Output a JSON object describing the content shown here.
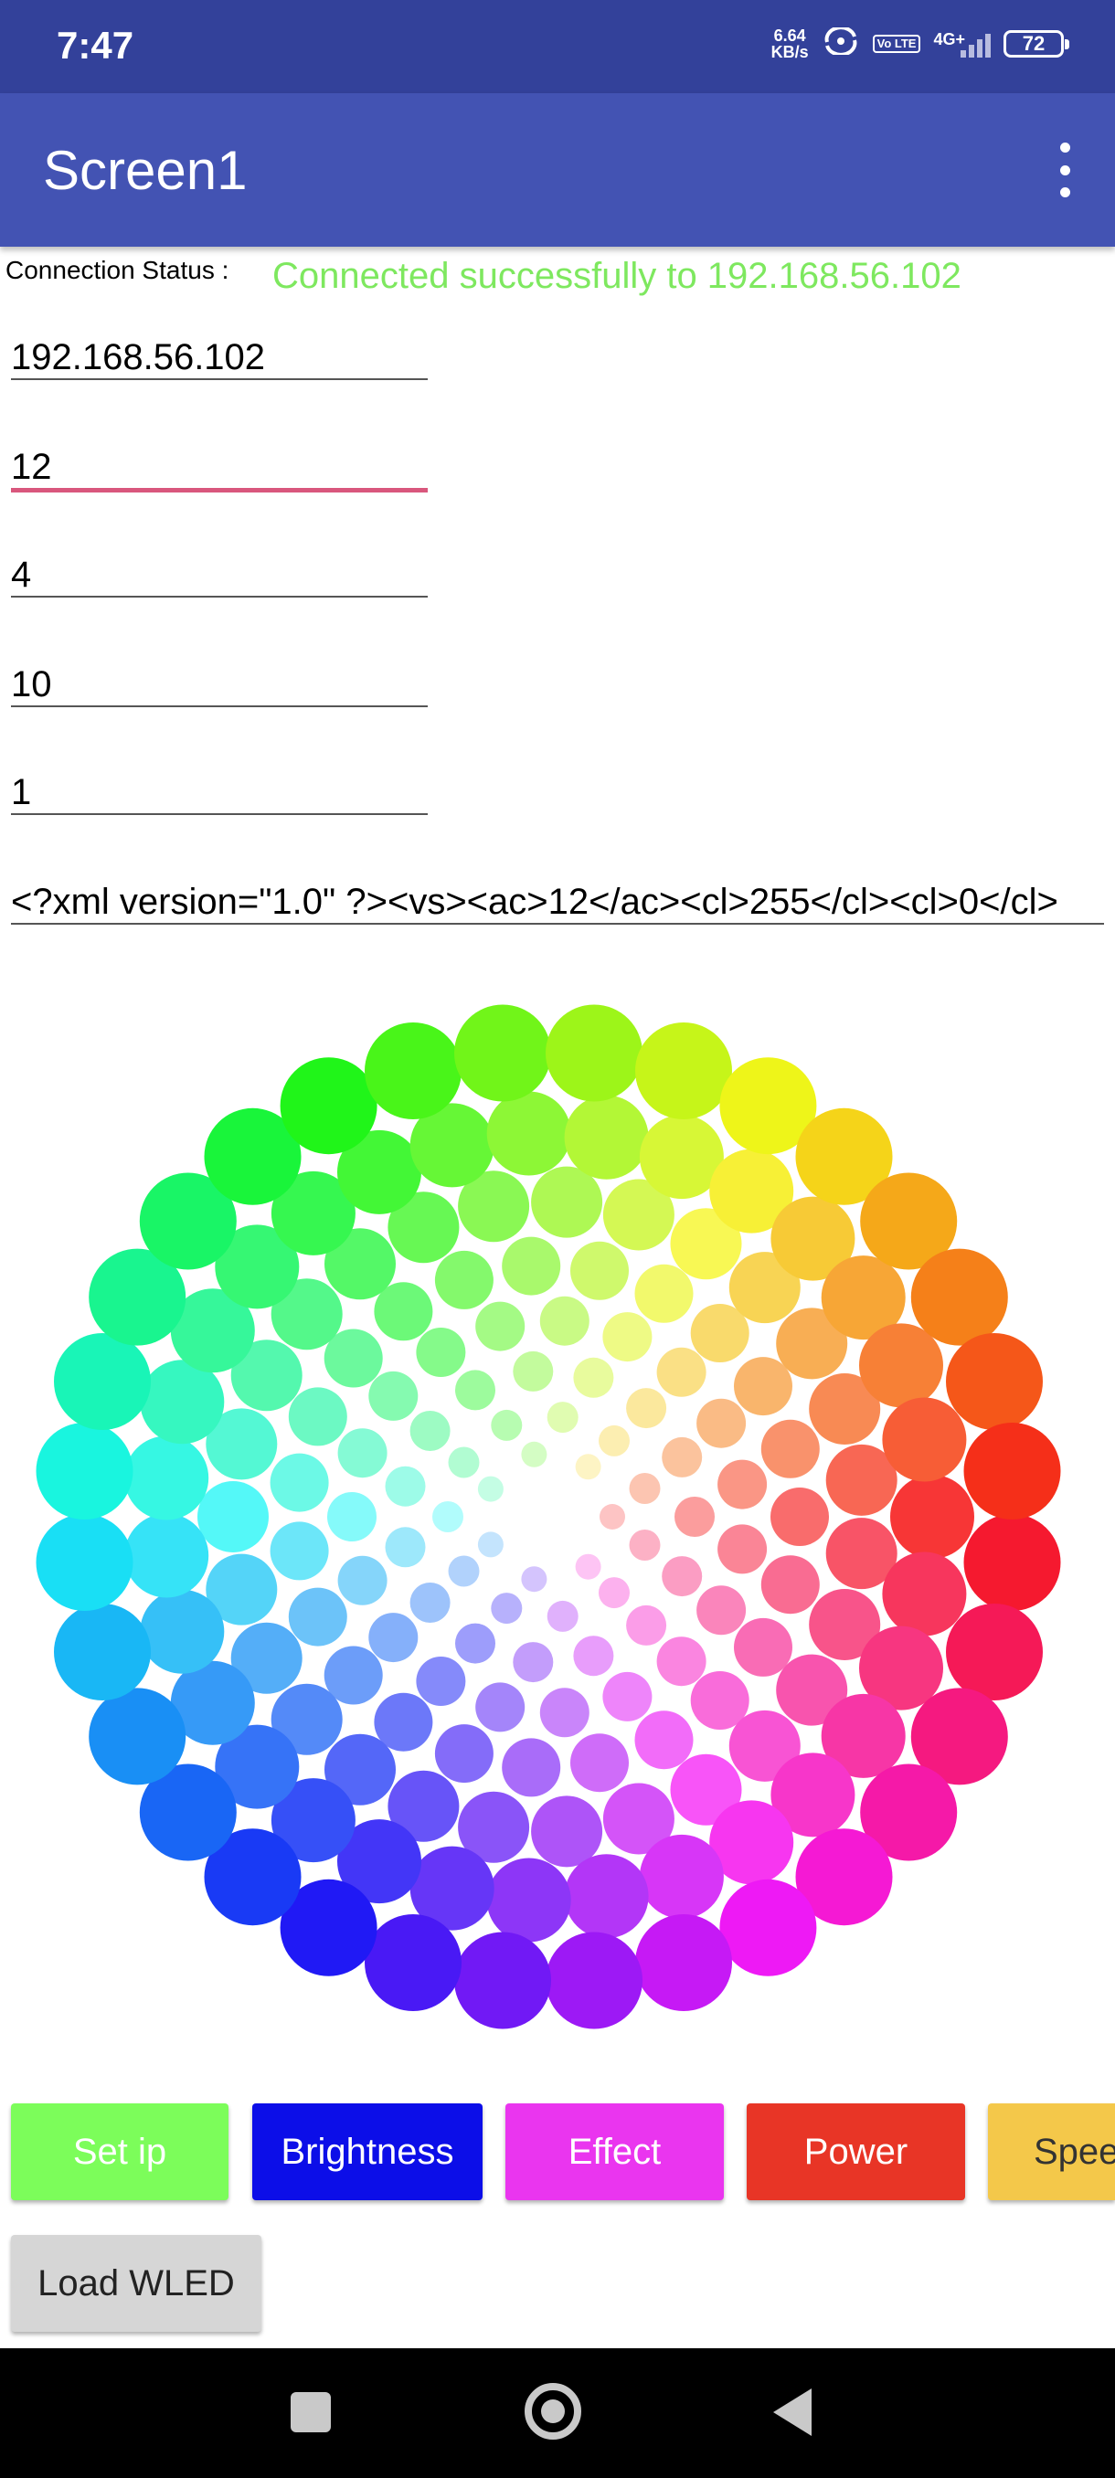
{
  "status_bar": {
    "time": "7:47",
    "net_speed_value": "6.64",
    "net_speed_unit": "KB/s",
    "volte": "Vo LTE",
    "network": "4G+",
    "battery": "72"
  },
  "app_bar": {
    "title": "Screen1"
  },
  "connection": {
    "label": "Connection Status :",
    "value": "Connected successfully to 192.168.56.102",
    "value_color": "#7ee85f"
  },
  "fields": [
    {
      "value": "192.168.56.102"
    },
    {
      "value": "12"
    },
    {
      "value": "4"
    },
    {
      "value": "10"
    },
    {
      "value": "1"
    },
    {
      "value": "<?xml version=\"1.0\" ?><vs><ac>12</ac><cl>255</cl><cl>0</cl>"
    }
  ],
  "buttons": [
    {
      "label": "Set ip",
      "color": "#7cfd5a"
    },
    {
      "label": "Brightness",
      "color": "#0c0ee8"
    },
    {
      "label": "Effect",
      "color": "#ea35ef"
    },
    {
      "label": "Power",
      "color": "#e83526"
    },
    {
      "label": "Spee",
      "color": "#f4c84a"
    }
  ],
  "load_button": {
    "label": "Load WLED"
  },
  "color_wheel": {
    "rings": 8,
    "dots_per_ring": [
      7,
      11,
      15,
      19,
      23,
      27,
      31,
      32
    ]
  }
}
